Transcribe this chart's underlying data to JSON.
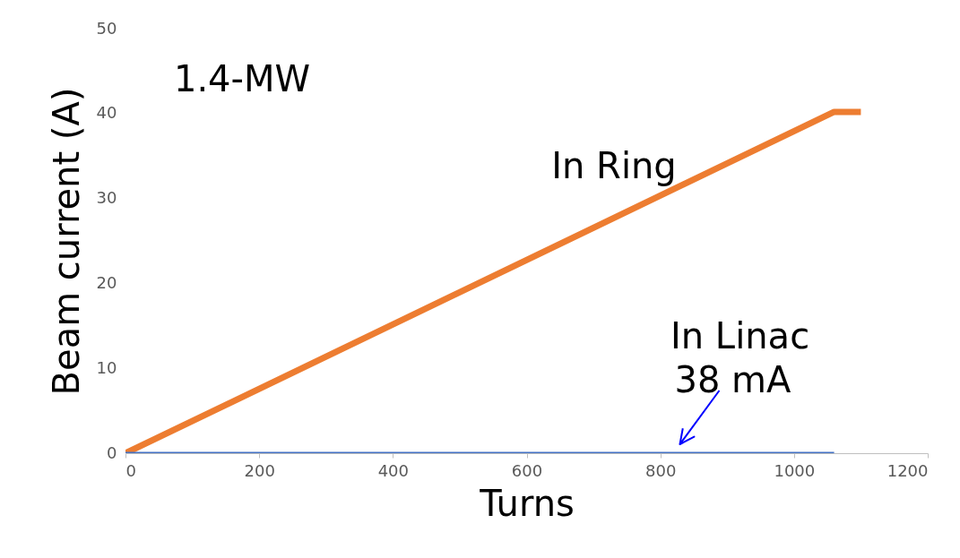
{
  "chart_data": {
    "type": "line",
    "xlabel": "Turns",
    "ylabel": "Beam current (A)",
    "xlim": [
      0,
      1200
    ],
    "xticks": [
      0,
      200,
      400,
      600,
      800,
      1000,
      1200
    ],
    "ylim": [
      0,
      50
    ],
    "yticks": [
      0,
      10,
      20,
      30,
      40,
      50
    ],
    "grid": false,
    "legend": false,
    "marker": "none",
    "line_style": "solid",
    "series": [
      {
        "name": "In Ring",
        "color": "#ed7d31",
        "x": [
          0,
          1060,
          1100
        ],
        "values": [
          0,
          40.2,
          40.2
        ]
      },
      {
        "name": "In Linac",
        "color": "#4472c4",
        "x": [
          0,
          1060
        ],
        "values": [
          0.038,
          0.038
        ]
      }
    ],
    "annotations": [
      "1.4-MW",
      {
        "text": "38 mA",
        "x": 840,
        "y": 0
      }
    ]
  }
}
